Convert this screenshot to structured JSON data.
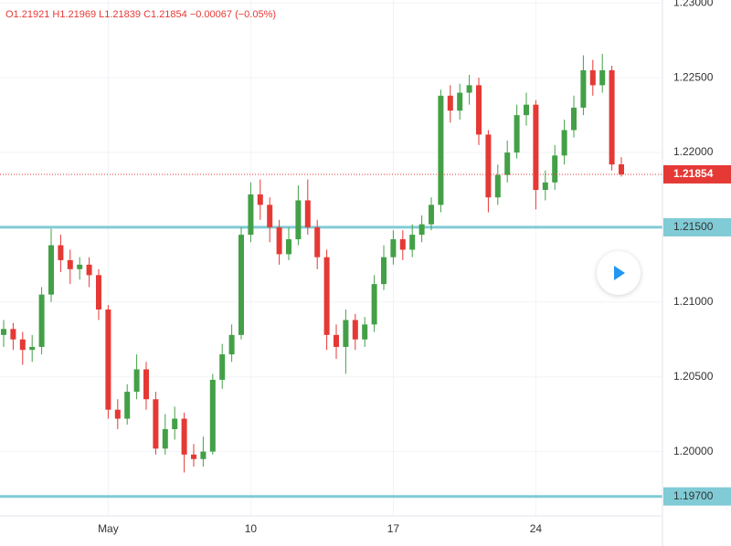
{
  "chart_data": {
    "type": "candlestick",
    "header": "O1.21921  H1.21969  L1.21839  C1.21854  −0.00067 (−0.05%)",
    "categories": [
      null,
      null,
      null,
      null,
      null,
      null,
      null,
      null,
      null,
      null,
      null,
      "May",
      null,
      null,
      null,
      null,
      null,
      null,
      null,
      null,
      null,
      null,
      null,
      null,
      null,
      null,
      "10",
      null,
      null,
      null,
      null,
      null,
      null,
      null,
      null,
      null,
      null,
      null,
      null,
      null,
      null,
      "17",
      null,
      null,
      null,
      null,
      null,
      null,
      null,
      null,
      null,
      null,
      null,
      null,
      null,
      null,
      "24",
      null,
      null,
      null,
      null,
      null,
      null,
      null,
      null,
      null
    ],
    "open": [
      1.2078,
      1.2082,
      1.2075,
      1.2068,
      1.207,
      1.2105,
      1.2138,
      1.2128,
      1.2122,
      1.2125,
      1.2118,
      1.2095,
      1.2028,
      1.2022,
      1.204,
      1.2055,
      1.2035,
      1.2002,
      1.2015,
      1.2022,
      1.1998,
      1.1995,
      1.2,
      1.2048,
      1.2065,
      1.2078,
      1.2145,
      1.2172,
      1.2165,
      1.215,
      1.2132,
      1.2142,
      1.2168,
      1.215,
      1.213,
      1.2078,
      1.207,
      1.2088,
      1.2075,
      1.2085,
      1.2112,
      1.213,
      1.2142,
      1.2135,
      1.2145,
      1.2152,
      1.2165,
      1.2238,
      1.2228,
      1.224,
      1.2245,
      1.2212,
      1.217,
      1.2185,
      1.22,
      1.2225,
      1.2232,
      1.2175,
      1.218,
      1.2198,
      1.2215,
      1.223,
      1.2255,
      1.2245,
      1.2255,
      1.21921
    ],
    "high": [
      1.2088,
      1.2086,
      1.208,
      1.2078,
      1.211,
      1.2149,
      1.2145,
      1.2135,
      1.213,
      1.213,
      1.2122,
      1.2098,
      1.2035,
      1.2045,
      1.2065,
      1.206,
      1.204,
      1.2025,
      1.203,
      1.2026,
      1.2005,
      1.201,
      1.2052,
      1.2072,
      1.2085,
      1.215,
      1.218,
      1.2182,
      1.217,
      1.2155,
      1.215,
      1.2178,
      1.2182,
      1.2155,
      1.2135,
      1.2085,
      1.2095,
      1.2092,
      1.209,
      1.2118,
      1.2138,
      1.2148,
      1.2148,
      1.2152,
      1.2158,
      1.217,
      1.2242,
      1.2245,
      1.2246,
      1.2252,
      1.225,
      1.2215,
      1.2192,
      1.2208,
      1.2232,
      1.224,
      1.2235,
      1.2188,
      1.2205,
      1.2222,
      1.2238,
      1.2265,
      1.2262,
      1.2266,
      1.2258,
      1.21969
    ],
    "low": [
      1.207,
      1.2068,
      1.2058,
      1.206,
      1.2065,
      1.21,
      1.212,
      1.2112,
      1.2115,
      1.211,
      1.2088,
      1.2022,
      1.2015,
      1.2018,
      1.2035,
      1.2028,
      1.1998,
      1.1998,
      1.2008,
      1.1986,
      1.199,
      1.199,
      1.1998,
      1.2042,
      1.206,
      1.2075,
      1.214,
      1.2155,
      1.214,
      1.2125,
      1.2128,
      1.2138,
      1.2145,
      1.2122,
      1.2068,
      1.2062,
      1.2052,
      1.2068,
      1.207,
      1.208,
      1.2108,
      1.2125,
      1.2128,
      1.213,
      1.214,
      1.2148,
      1.216,
      1.222,
      1.2222,
      1.2232,
      1.2205,
      1.216,
      1.2165,
      1.218,
      1.2196,
      1.2218,
      1.2162,
      1.2168,
      1.2175,
      1.2192,
      1.221,
      1.2225,
      1.2238,
      1.224,
      1.2188,
      1.21839
    ],
    "close": [
      1.2082,
      1.2075,
      1.2068,
      1.207,
      1.2105,
      1.2138,
      1.2128,
      1.2122,
      1.2125,
      1.2118,
      1.2095,
      1.2028,
      1.2022,
      1.204,
      1.2055,
      1.2035,
      1.2002,
      1.2015,
      1.2022,
      1.1998,
      1.1995,
      1.2,
      1.2048,
      1.2065,
      1.2078,
      1.2145,
      1.2172,
      1.2165,
      1.215,
      1.2132,
      1.2142,
      1.2168,
      1.215,
      1.213,
      1.2078,
      1.207,
      1.2088,
      1.2075,
      1.2085,
      1.2112,
      1.213,
      1.2142,
      1.2135,
      1.2145,
      1.2152,
      1.2165,
      1.2238,
      1.2228,
      1.224,
      1.2245,
      1.2212,
      1.217,
      1.2185,
      1.22,
      1.2225,
      1.2232,
      1.2175,
      1.218,
      1.2198,
      1.2215,
      1.223,
      1.2255,
      1.2245,
      1.2255,
      1.2192,
      1.21854
    ],
    "up_color": "#43a047",
    "down_color": "#e53935",
    "ylim": [
      1.1957,
      1.2302
    ],
    "yticks": [
      {
        "value": 1.2,
        "label": "1.20000"
      },
      {
        "value": 1.205,
        "label": "1.20500"
      },
      {
        "value": 1.21,
        "label": "1.21000"
      },
      {
        "value": 1.215,
        "label": "1.21500"
      },
      {
        "value": 1.22,
        "label": "1.22000"
      },
      {
        "value": 1.225,
        "label": "1.22500"
      },
      {
        "value": 1.23,
        "label": "1.23000"
      }
    ],
    "levels": [
      {
        "value": 1.215,
        "label": "1.21500"
      },
      {
        "value": 1.197,
        "label": "1.19700"
      }
    ],
    "level_color": "#80cbd6",
    "last_price": {
      "value": 1.21854,
      "label": "1.21854"
    },
    "grid": true
  }
}
